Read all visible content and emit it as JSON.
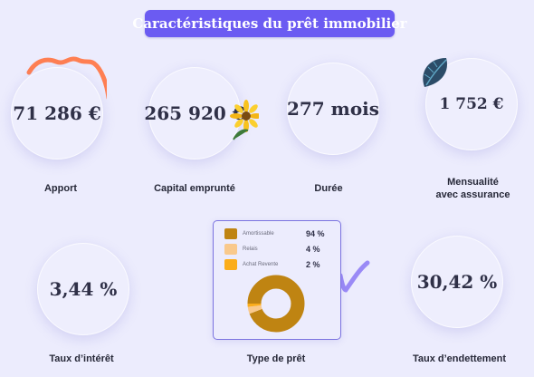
{
  "title": "Caractéristiques du prêt immobilier",
  "stats": [
    {
      "value": "71 286 €",
      "label": "Apport"
    },
    {
      "value": "265 920 €",
      "label": "Capital emprunté"
    },
    {
      "value": "277 mois",
      "label": "Durée"
    },
    {
      "value": "1 752 €",
      "label_line1": "Mensualité",
      "label_line2": "avec assurance"
    },
    {
      "value": "3,44 %",
      "label": "Taux d’intérêt"
    },
    {
      "label": "Type de prêt"
    },
    {
      "value": "30,42 %",
      "label": "Taux d’endettement"
    }
  ],
  "loan_types": [
    {
      "name": "Amortissable",
      "percent": "94 %",
      "share": 0.94,
      "color": "#bf8412"
    },
    {
      "name": "Relais",
      "percent": "4 %",
      "share": 0.04,
      "color": "#f9c98c"
    },
    {
      "name": "Achat Revente",
      "percent": "2 %",
      "share": 0.02,
      "color": "#fbad1b"
    }
  ],
  "colors": {
    "background": "#ececfd",
    "accent": "#6b5bf2",
    "text": "#2f3047"
  }
}
